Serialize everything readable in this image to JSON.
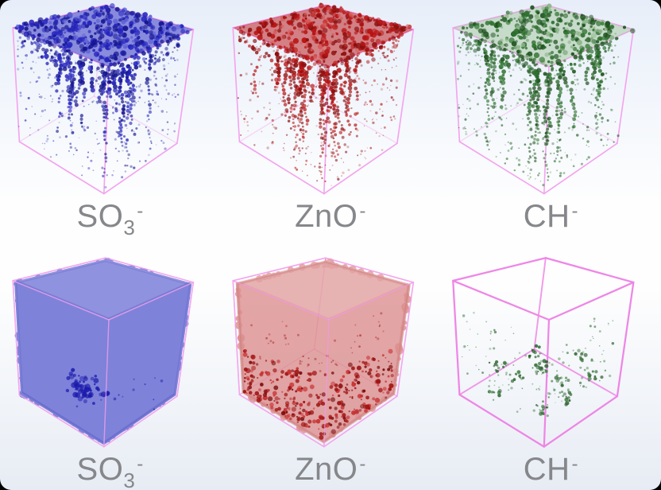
{
  "figure": {
    "type": "3d-volume-render-grid",
    "wireframe_color": "#f3a4ee",
    "wireframe_color_bright": "#ee86e6",
    "label_color": "#85878a",
    "background": {
      "outer": "#000000",
      "top": "#e7eef9",
      "middle": "#fefefe",
      "bottom": "#e7ecf4"
    },
    "panels": [
      {
        "id": "so3-top",
        "species": "SO3-",
        "label": {
          "main": "SO",
          "sub": "3",
          "sup": "-"
        },
        "render": "hanging-clusters-from-top",
        "seed": 1,
        "colors": {
          "dark": "#14148e",
          "base": "#2525bd",
          "light": "#6365d8",
          "canopy": "#2e2ec2"
        },
        "density": {
          "canopy": 430,
          "strands": 27,
          "dust": 300
        }
      },
      {
        "id": "zno-top",
        "species": "ZnO-",
        "label": {
          "main": "ZnO",
          "sub": "",
          "sup": "-"
        },
        "render": "hanging-clusters-from-top",
        "seed": 2,
        "colors": {
          "dark": "#8c0d0d",
          "base": "#b81414",
          "light": "#d85a5a",
          "canopy": "#bb1818"
        },
        "density": {
          "canopy": 390,
          "strands": 25,
          "dust": 300
        }
      },
      {
        "id": "ch-top",
        "species": "CH-",
        "label": {
          "main": "CH",
          "sub": "",
          "sup": "-"
        },
        "render": "hanging-clusters-from-top",
        "seed": 3,
        "colors": {
          "dark": "#1f541f",
          "base": "#2f7330",
          "light": "#8db489",
          "canopy": "#a6c79f"
        },
        "density": {
          "canopy": 330,
          "strands": 23,
          "dust": 340
        }
      },
      {
        "id": "so3-bottom",
        "species": "SO3-",
        "label": {
          "main": "SO",
          "sub": "3",
          "sup": "-"
        },
        "render": "solid-filled-cube",
        "seed": 4,
        "colors": {
          "base": "#7f82d9",
          "edge": "#5a5ec5",
          "speck": "#1b1bac"
        },
        "density": {
          "specks": 62
        }
      },
      {
        "id": "zno-bottom",
        "species": "ZnO-",
        "label": {
          "main": "ZnO",
          "sub": "",
          "sup": "-"
        },
        "render": "translucent-cube-dense-bottom",
        "seed": 5,
        "colors": {
          "base": "#dc8f8f",
          "edge": "#c47d7d",
          "speck_dark": "#a01212",
          "speck_light": "#c83030"
        },
        "density": {
          "band": 330,
          "above": 45
        }
      },
      {
        "id": "ch-bottom",
        "species": "CH-",
        "label": {
          "main": "CH",
          "sub": "",
          "sup": "-"
        },
        "render": "sparse-specks",
        "seed": 6,
        "colors": {
          "base": "#3f7d41",
          "dark": "#2c632e"
        },
        "density": {
          "dust": 135,
          "clusters": 10
        }
      }
    ]
  }
}
